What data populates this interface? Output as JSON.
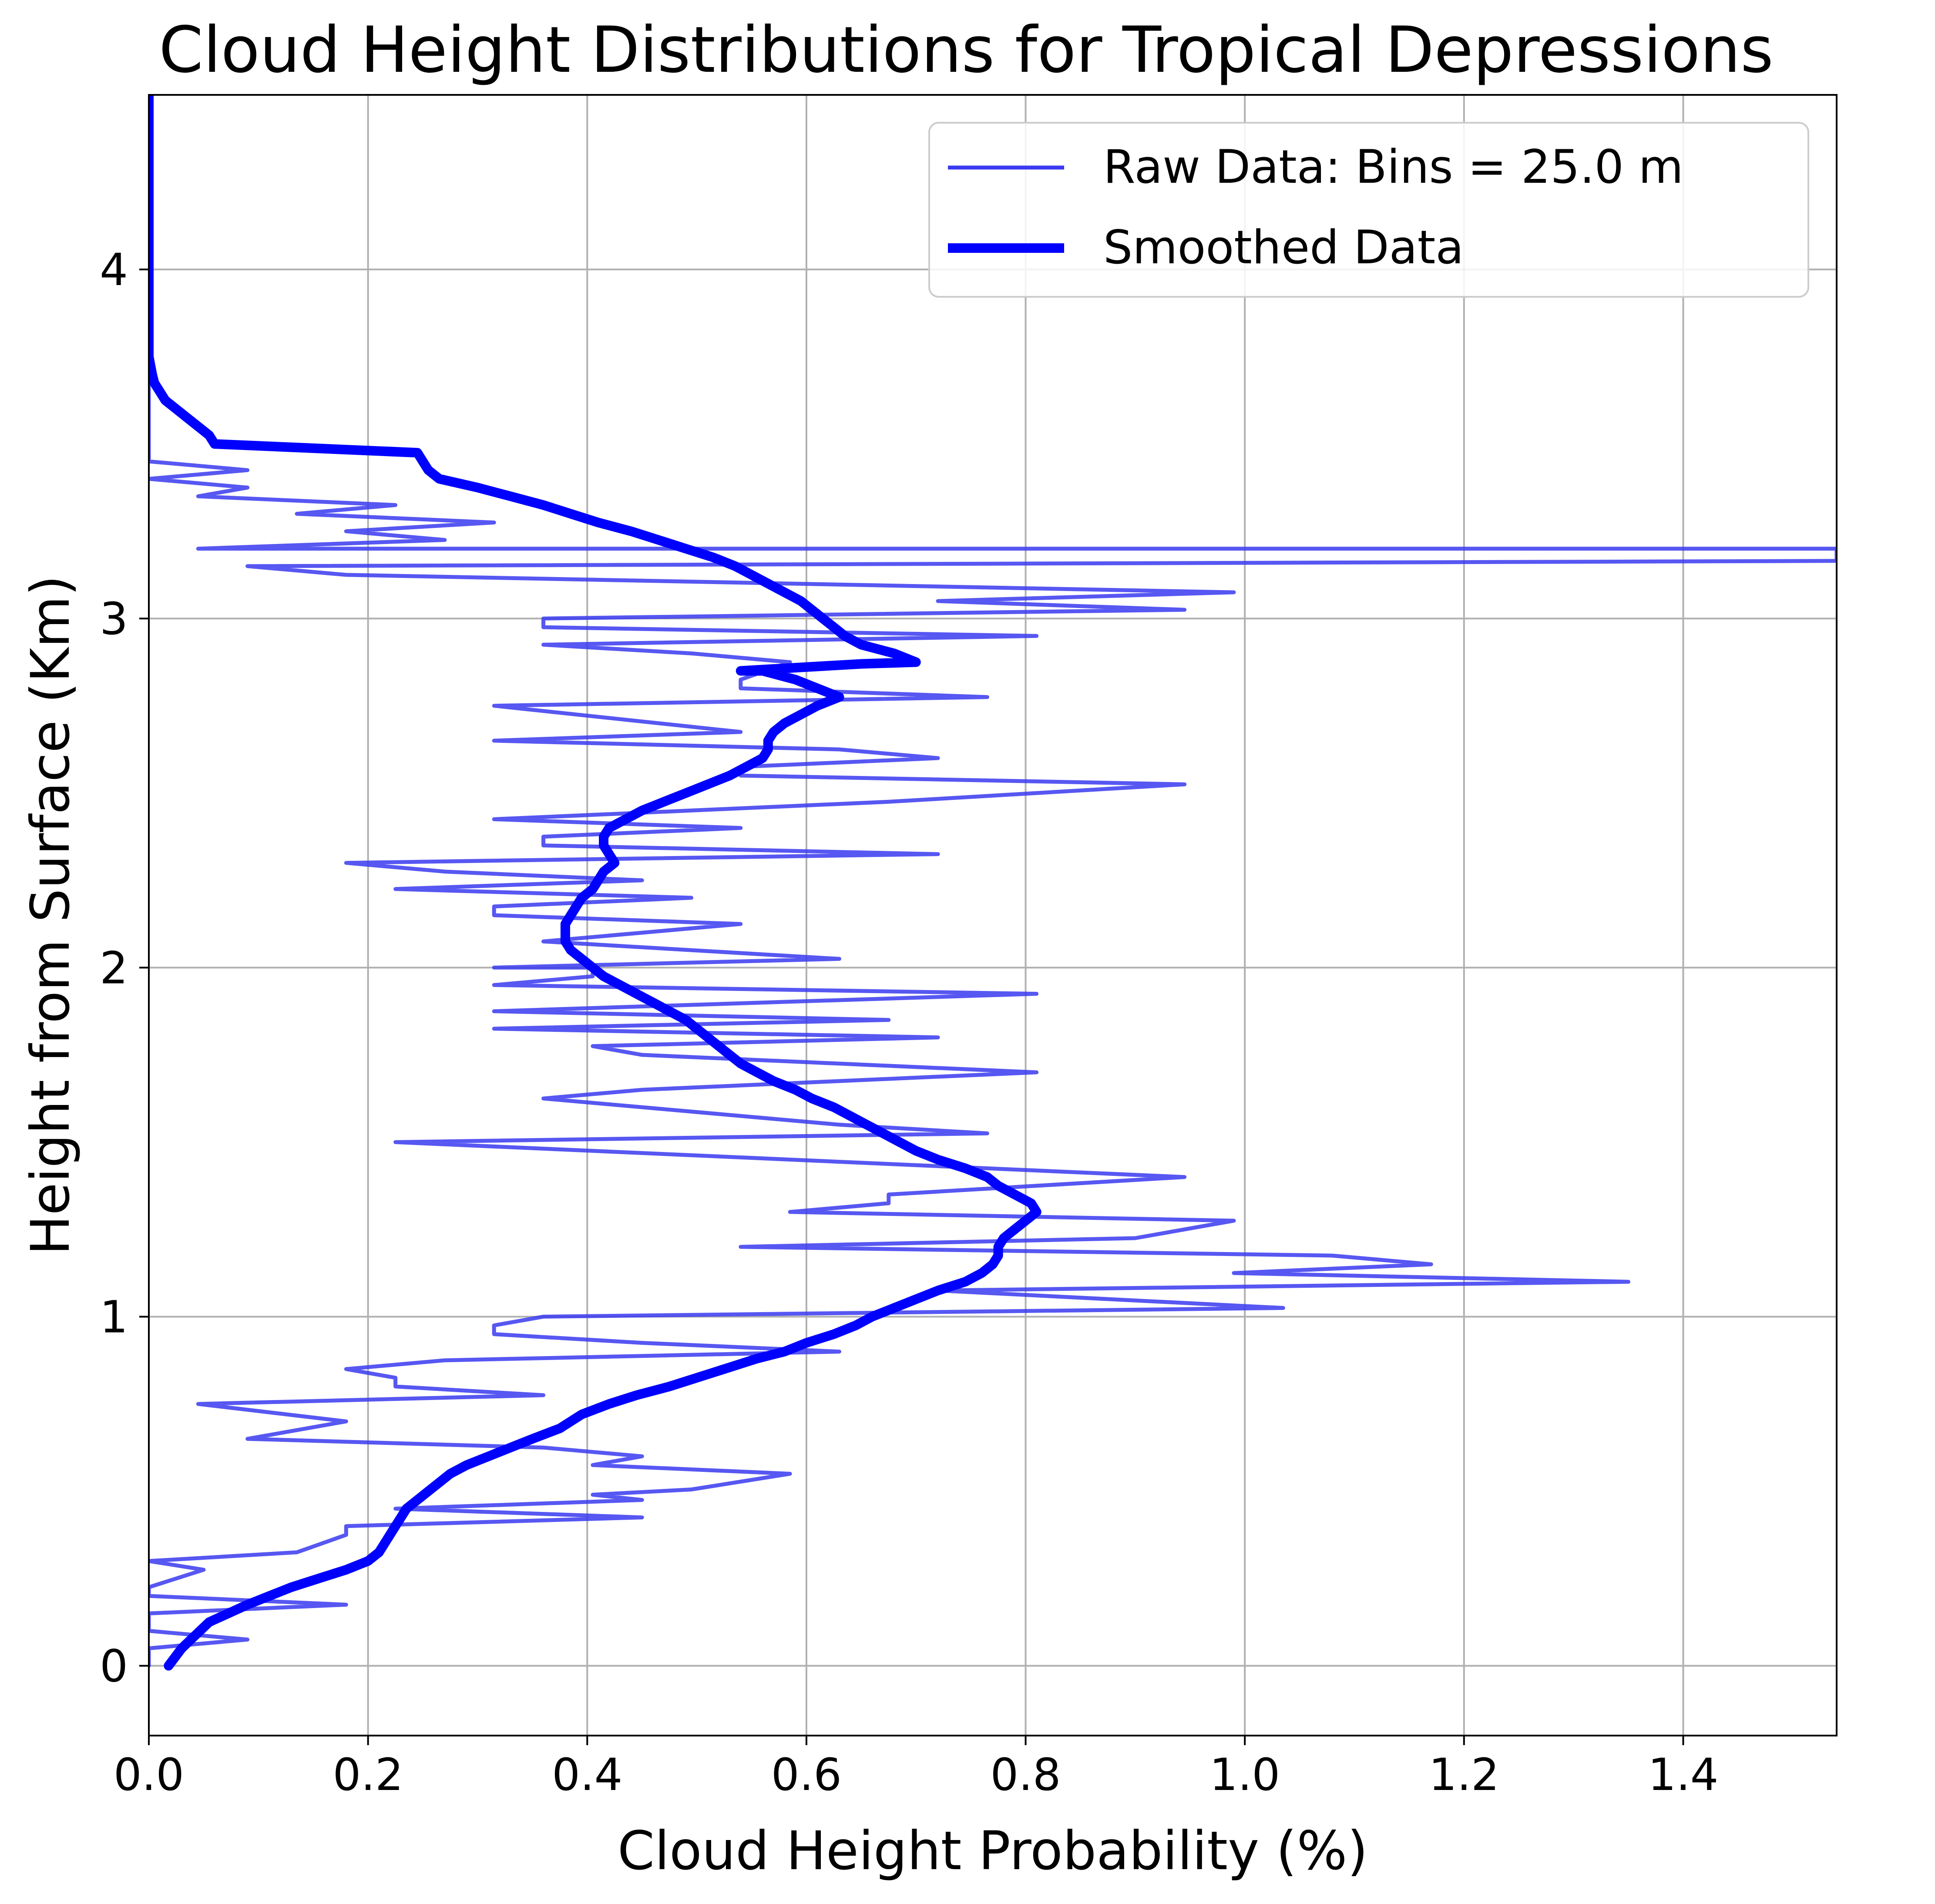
{
  "chart_data": {
    "type": "line",
    "title": "Cloud Height Distributions for Tropical Depressions",
    "xlabel": "Cloud Height Probability (%)",
    "ylabel": "Height from Surface (Km)",
    "xlim": [
      0,
      1.54
    ],
    "ylim": [
      -0.2,
      4.5
    ],
    "xticks": [
      0.0,
      0.2,
      0.4,
      0.6,
      0.8,
      1.0,
      1.2,
      1.4
    ],
    "xtick_labels": [
      "0.0",
      "0.2",
      "0.4",
      "0.6",
      "0.8",
      "1.0",
      "1.2",
      "1.4"
    ],
    "yticks": [
      0,
      1,
      2,
      3,
      4
    ],
    "ytick_labels": [
      "0",
      "1",
      "2",
      "3",
      "4"
    ],
    "grid": true,
    "legend_position": "top-right",
    "series": [
      {
        "name": "Raw Data: Bins = 25.0 m",
        "color": "#3a3af0",
        "style": "thin",
        "points": [
          [
            0.0,
            0.0
          ],
          [
            0.0,
            0.05
          ],
          [
            0.09,
            0.075
          ],
          [
            0.0,
            0.1
          ],
          [
            0.0,
            0.125
          ],
          [
            0.0,
            0.15
          ],
          [
            0.18,
            0.175
          ],
          [
            0.0,
            0.2
          ],
          [
            0.0,
            0.225
          ],
          [
            0.05,
            0.275
          ],
          [
            0.0,
            0.3
          ],
          [
            0.135,
            0.325
          ],
          [
            0.18,
            0.375
          ],
          [
            0.18,
            0.4
          ],
          [
            0.45,
            0.425
          ],
          [
            0.225,
            0.45
          ],
          [
            0.45,
            0.475
          ],
          [
            0.405,
            0.49
          ],
          [
            0.495,
            0.505
          ],
          [
            0.585,
            0.55
          ],
          [
            0.405,
            0.575
          ],
          [
            0.45,
            0.6
          ],
          [
            0.36,
            0.625
          ],
          [
            0.09,
            0.65
          ],
          [
            0.18,
            0.7
          ],
          [
            0.045,
            0.75
          ],
          [
            0.36,
            0.775
          ],
          [
            0.225,
            0.8
          ],
          [
            0.225,
            0.825
          ],
          [
            0.18,
            0.85
          ],
          [
            0.27,
            0.875
          ],
          [
            0.63,
            0.9
          ],
          [
            0.45,
            0.925
          ],
          [
            0.315,
            0.95
          ],
          [
            0.315,
            0.975
          ],
          [
            0.36,
            1.0
          ],
          [
            1.035,
            1.025
          ],
          [
            0.72,
            1.075
          ],
          [
            1.35,
            1.1
          ],
          [
            0.99,
            1.125
          ],
          [
            1.17,
            1.15
          ],
          [
            1.08,
            1.175
          ],
          [
            0.54,
            1.2
          ],
          [
            0.9,
            1.225
          ],
          [
            0.99,
            1.275
          ],
          [
            0.585,
            1.3
          ],
          [
            0.675,
            1.325
          ],
          [
            0.675,
            1.35
          ],
          [
            0.945,
            1.4
          ],
          [
            0.225,
            1.5
          ],
          [
            0.765,
            1.525
          ],
          [
            0.63,
            1.55
          ],
          [
            0.36,
            1.625
          ],
          [
            0.45,
            1.65
          ],
          [
            0.81,
            1.7
          ],
          [
            0.45,
            1.75
          ],
          [
            0.405,
            1.775
          ],
          [
            0.72,
            1.8
          ],
          [
            0.315,
            1.825
          ],
          [
            0.675,
            1.85
          ],
          [
            0.315,
            1.875
          ],
          [
            0.81,
            1.925
          ],
          [
            0.315,
            1.95
          ],
          [
            0.405,
            1.975
          ],
          [
            0.405,
            2.0
          ],
          [
            0.315,
            2.0
          ],
          [
            0.63,
            2.025
          ],
          [
            0.36,
            2.075
          ],
          [
            0.54,
            2.125
          ],
          [
            0.315,
            2.15
          ],
          [
            0.315,
            2.175
          ],
          [
            0.495,
            2.2
          ],
          [
            0.225,
            2.225
          ],
          [
            0.45,
            2.25
          ],
          [
            0.27,
            2.275
          ],
          [
            0.18,
            2.3
          ],
          [
            0.72,
            2.325
          ],
          [
            0.36,
            2.35
          ],
          [
            0.36,
            2.375
          ],
          [
            0.54,
            2.4
          ],
          [
            0.315,
            2.425
          ],
          [
            0.675,
            2.475
          ],
          [
            0.945,
            2.525
          ],
          [
            0.54,
            2.55
          ],
          [
            0.54,
            2.575
          ],
          [
            0.72,
            2.6
          ],
          [
            0.63,
            2.625
          ],
          [
            0.315,
            2.65
          ],
          [
            0.54,
            2.675
          ],
          [
            0.315,
            2.75
          ],
          [
            0.765,
            2.775
          ],
          [
            0.54,
            2.8
          ],
          [
            0.54,
            2.825
          ],
          [
            0.585,
            2.875
          ],
          [
            0.495,
            2.9
          ],
          [
            0.36,
            2.925
          ],
          [
            0.81,
            2.95
          ],
          [
            0.36,
            2.975
          ],
          [
            0.36,
            3.0
          ],
          [
            0.945,
            3.025
          ],
          [
            0.72,
            3.05
          ],
          [
            0.99,
            3.075
          ],
          [
            0.18,
            3.125
          ],
          [
            0.09,
            3.15
          ],
          [
            1.54,
            3.165
          ],
          [
            1.54,
            3.2
          ],
          [
            0.045,
            3.2
          ],
          [
            0.27,
            3.225
          ],
          [
            0.18,
            3.25
          ],
          [
            0.315,
            3.275
          ],
          [
            0.135,
            3.3
          ],
          [
            0.225,
            3.325
          ],
          [
            0.045,
            3.35
          ],
          [
            0.09,
            3.375
          ],
          [
            0.0,
            3.4
          ],
          [
            0.09,
            3.425
          ],
          [
            0.0,
            3.45
          ],
          [
            0.0,
            4.5
          ]
        ]
      },
      {
        "name": "Smoothed Data",
        "color": "#0000ff",
        "style": "thick",
        "points": [
          [
            0.018,
            0.0
          ],
          [
            0.03,
            0.05
          ],
          [
            0.055,
            0.125
          ],
          [
            0.09,
            0.175
          ],
          [
            0.13,
            0.225
          ],
          [
            0.155,
            0.25
          ],
          [
            0.18,
            0.275
          ],
          [
            0.2,
            0.3
          ],
          [
            0.21,
            0.325
          ],
          [
            0.215,
            0.35
          ],
          [
            0.22,
            0.375
          ],
          [
            0.225,
            0.4
          ],
          [
            0.23,
            0.425
          ],
          [
            0.235,
            0.45
          ],
          [
            0.245,
            0.475
          ],
          [
            0.255,
            0.5
          ],
          [
            0.265,
            0.525
          ],
          [
            0.275,
            0.55
          ],
          [
            0.29,
            0.575
          ],
          [
            0.31,
            0.6
          ],
          [
            0.33,
            0.625
          ],
          [
            0.35,
            0.65
          ],
          [
            0.375,
            0.68
          ],
          [
            0.395,
            0.72
          ],
          [
            0.42,
            0.75
          ],
          [
            0.445,
            0.775
          ],
          [
            0.475,
            0.8
          ],
          [
            0.505,
            0.83
          ],
          [
            0.53,
            0.855
          ],
          [
            0.555,
            0.88
          ],
          [
            0.58,
            0.9
          ],
          [
            0.6,
            0.925
          ],
          [
            0.625,
            0.95
          ],
          [
            0.645,
            0.975
          ],
          [
            0.66,
            1.0
          ],
          [
            0.68,
            1.025
          ],
          [
            0.7,
            1.05
          ],
          [
            0.72,
            1.075
          ],
          [
            0.745,
            1.1
          ],
          [
            0.76,
            1.125
          ],
          [
            0.77,
            1.15
          ],
          [
            0.775,
            1.175
          ],
          [
            0.775,
            1.2
          ],
          [
            0.78,
            1.225
          ],
          [
            0.79,
            1.25
          ],
          [
            0.8,
            1.275
          ],
          [
            0.81,
            1.3
          ],
          [
            0.805,
            1.325
          ],
          [
            0.79,
            1.35
          ],
          [
            0.775,
            1.375
          ],
          [
            0.765,
            1.4
          ],
          [
            0.745,
            1.425
          ],
          [
            0.72,
            1.45
          ],
          [
            0.7,
            1.475
          ],
          [
            0.685,
            1.5
          ],
          [
            0.67,
            1.525
          ],
          [
            0.655,
            1.55
          ],
          [
            0.64,
            1.575
          ],
          [
            0.625,
            1.6
          ],
          [
            0.605,
            1.625
          ],
          [
            0.59,
            1.65
          ],
          [
            0.57,
            1.675
          ],
          [
            0.555,
            1.7
          ],
          [
            0.54,
            1.725
          ],
          [
            0.53,
            1.75
          ],
          [
            0.52,
            1.775
          ],
          [
            0.51,
            1.8
          ],
          [
            0.5,
            1.825
          ],
          [
            0.49,
            1.85
          ],
          [
            0.475,
            1.875
          ],
          [
            0.46,
            1.9
          ],
          [
            0.445,
            1.925
          ],
          [
            0.43,
            1.95
          ],
          [
            0.415,
            1.975
          ],
          [
            0.405,
            2.0
          ],
          [
            0.395,
            2.025
          ],
          [
            0.385,
            2.05
          ],
          [
            0.38,
            2.075
          ],
          [
            0.38,
            2.1
          ],
          [
            0.38,
            2.125
          ],
          [
            0.385,
            2.15
          ],
          [
            0.39,
            2.175
          ],
          [
            0.395,
            2.2
          ],
          [
            0.405,
            2.225
          ],
          [
            0.41,
            2.25
          ],
          [
            0.415,
            2.275
          ],
          [
            0.425,
            2.3
          ],
          [
            0.42,
            2.325
          ],
          [
            0.415,
            2.35
          ],
          [
            0.415,
            2.375
          ],
          [
            0.42,
            2.4
          ],
          [
            0.435,
            2.425
          ],
          [
            0.45,
            2.45
          ],
          [
            0.47,
            2.475
          ],
          [
            0.49,
            2.5
          ],
          [
            0.51,
            2.525
          ],
          [
            0.53,
            2.55
          ],
          [
            0.545,
            2.575
          ],
          [
            0.56,
            2.6
          ],
          [
            0.565,
            2.625
          ],
          [
            0.565,
            2.65
          ],
          [
            0.57,
            2.675
          ],
          [
            0.58,
            2.7
          ],
          [
            0.595,
            2.725
          ],
          [
            0.61,
            2.75
          ],
          [
            0.63,
            2.775
          ],
          [
            0.61,
            2.8
          ],
          [
            0.59,
            2.825
          ],
          [
            0.56,
            2.85
          ],
          [
            0.54,
            2.85
          ],
          [
            0.65,
            2.87
          ],
          [
            0.7,
            2.875
          ],
          [
            0.68,
            2.9
          ],
          [
            0.65,
            2.925
          ],
          [
            0.635,
            2.95
          ],
          [
            0.625,
            2.975
          ],
          [
            0.615,
            3.0
          ],
          [
            0.605,
            3.025
          ],
          [
            0.595,
            3.05
          ],
          [
            0.58,
            3.075
          ],
          [
            0.565,
            3.1
          ],
          [
            0.55,
            3.125
          ],
          [
            0.535,
            3.15
          ],
          [
            0.515,
            3.175
          ],
          [
            0.49,
            3.2
          ],
          [
            0.465,
            3.225
          ],
          [
            0.44,
            3.25
          ],
          [
            0.41,
            3.275
          ],
          [
            0.385,
            3.3
          ],
          [
            0.36,
            3.325
          ],
          [
            0.33,
            3.35
          ],
          [
            0.3,
            3.375
          ],
          [
            0.265,
            3.4
          ],
          [
            0.255,
            3.425
          ],
          [
            0.25,
            3.45
          ],
          [
            0.245,
            3.475
          ],
          [
            0.06,
            3.5
          ],
          [
            0.055,
            3.525
          ],
          [
            0.045,
            3.55
          ],
          [
            0.035,
            3.575
          ],
          [
            0.025,
            3.6
          ],
          [
            0.015,
            3.625
          ],
          [
            0.01,
            3.65
          ],
          [
            0.005,
            3.675
          ],
          [
            0.003,
            3.7
          ],
          [
            0.0,
            3.75
          ],
          [
            0.0,
            4.5
          ]
        ]
      }
    ]
  }
}
